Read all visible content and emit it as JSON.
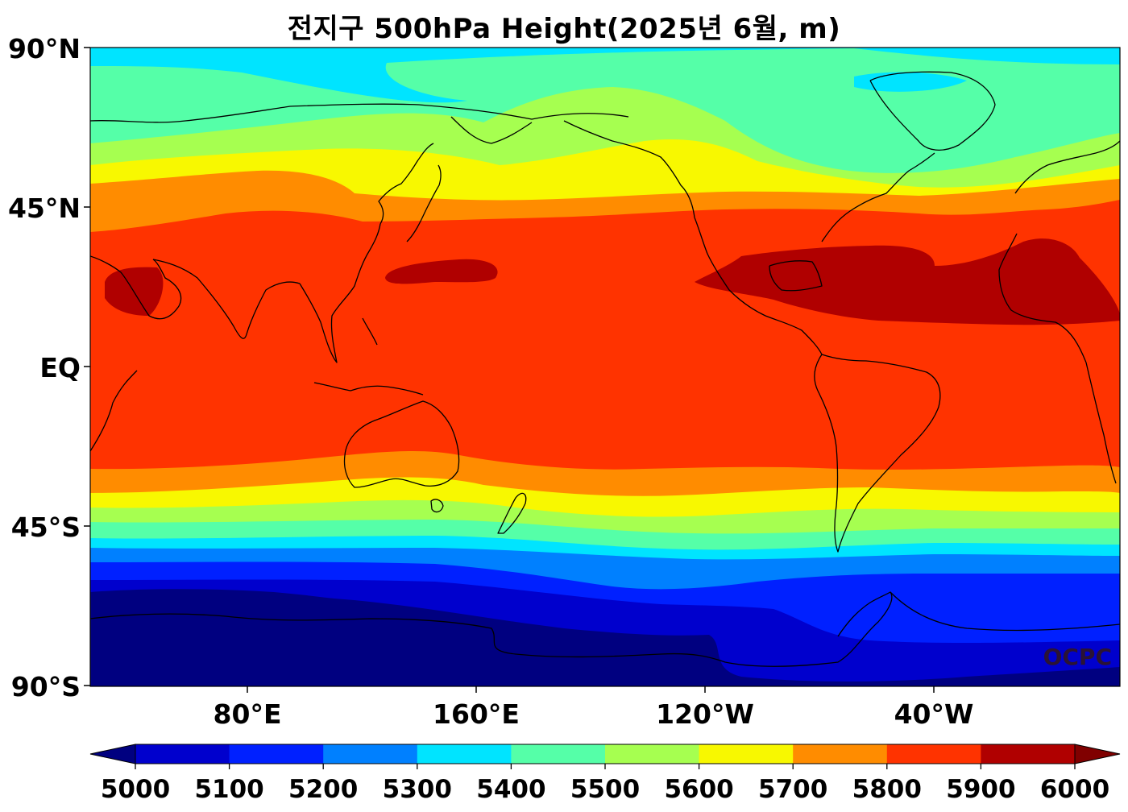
{
  "map": {
    "title": "전지구 500hPa Height(2025년 6월, m)",
    "projection": "equirectangular",
    "central_longitude": 180,
    "lat_ticks": [
      "90°N",
      "45°N",
      "EQ",
      "45°S",
      "90°S"
    ],
    "lon_ticks": [
      "80°E",
      "160°E",
      "120°W",
      "40°W"
    ],
    "watermark": "OCPC",
    "colorbar": {
      "levels": [
        "5000",
        "5100",
        "5200",
        "5300",
        "5400",
        "5500",
        "5600",
        "5700",
        "5800",
        "5900",
        "6000"
      ],
      "colors": [
        "#000080",
        "#0000cd",
        "#0020ff",
        "#0080ff",
        "#00e4ff",
        "#55ffa8",
        "#a6ff50",
        "#f8f800",
        "#ff8c00",
        "#ff3300",
        "#b00000",
        "#800000"
      ],
      "extend": "both"
    }
  }
}
